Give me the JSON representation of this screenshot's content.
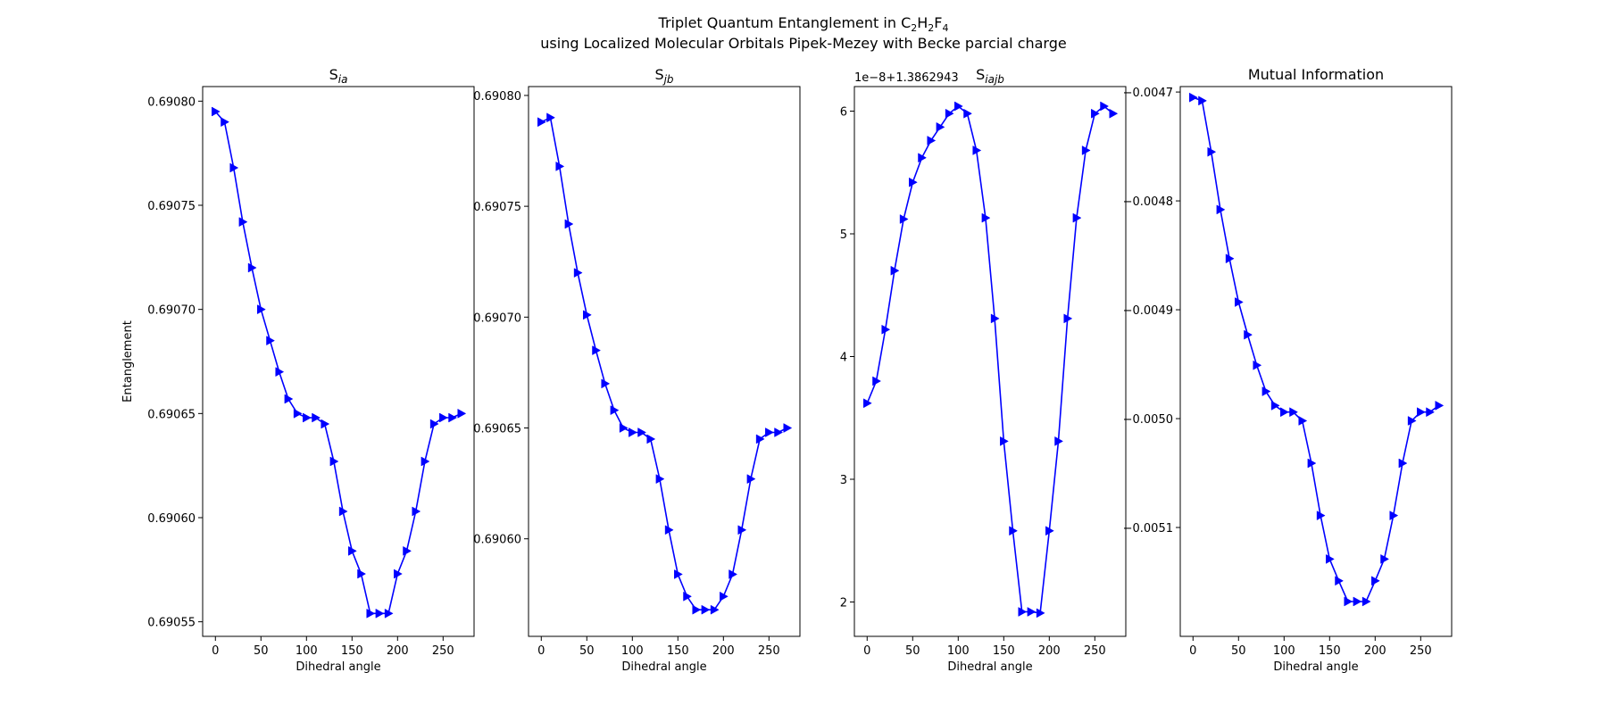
{
  "figure": {
    "title_line1_prefix": "Triplet Quantum Entanglement in C",
    "title_formula_sub1": "2",
    "title_formula_mid": "H",
    "title_formula_sub2": "2",
    "title_formula_end": "F",
    "title_formula_sub3": "4",
    "title_line2": "using Localized Molecular Orbitals Pipek-Mezey with Becke parcial charge"
  },
  "style": {
    "line_color": "#0000ff",
    "marker": "triangle-right"
  },
  "chart_data": [
    {
      "type": "line",
      "title_main": "S",
      "title_sub": "ia",
      "xlabel": "Dihedral angle",
      "ylabel": "Entanglement",
      "offset_text": "",
      "xlim": [
        -14,
        284
      ],
      "ylim": [
        0.690543,
        0.690807
      ],
      "xticks": [
        0,
        50,
        100,
        150,
        200,
        250
      ],
      "yticks": [
        0.69055,
        0.6906,
        0.69065,
        0.6907,
        0.69075,
        0.6908
      ],
      "ytick_labels": [
        "0.69055",
        "0.69060",
        "0.69065",
        "0.69070",
        "0.69075",
        "0.69080"
      ],
      "x": [
        0,
        10,
        20,
        30,
        40,
        50,
        60,
        70,
        80,
        90,
        100,
        110,
        120,
        130,
        140,
        150,
        160,
        170,
        180,
        190,
        200,
        210,
        220,
        230,
        240,
        250,
        260,
        270
      ],
      "values": [
        0.690795,
        0.69079,
        0.690768,
        0.690742,
        0.69072,
        0.6907,
        0.690685,
        0.69067,
        0.690657,
        0.69065,
        0.690648,
        0.690648,
        0.690645,
        0.690627,
        0.690603,
        0.690584,
        0.690573,
        0.690554,
        0.690554,
        0.690554,
        0.690573,
        0.690584,
        0.690603,
        0.690627,
        0.690645,
        0.690648,
        0.690648,
        0.69065
      ]
    },
    {
      "type": "line",
      "title_main": "S",
      "title_sub": "jb",
      "xlabel": "Dihedral angle",
      "ylabel": "",
      "offset_text": "",
      "xlim": [
        -14,
        284
      ],
      "ylim": [
        0.690556,
        0.690804
      ],
      "xticks": [
        0,
        50,
        100,
        150,
        200,
        250
      ],
      "yticks": [
        0.6906,
        0.69065,
        0.6907,
        0.69075,
        0.6908
      ],
      "ytick_labels": [
        "0.69060",
        "0.69065",
        "0.69070",
        "0.69075",
        "0.69080"
      ],
      "x": [
        0,
        10,
        20,
        30,
        40,
        50,
        60,
        70,
        80,
        90,
        100,
        110,
        120,
        130,
        140,
        150,
        160,
        170,
        180,
        190,
        200,
        210,
        220,
        230,
        240,
        250,
        260,
        270
      ],
      "values": [
        0.690788,
        0.69079,
        0.690768,
        0.690742,
        0.69072,
        0.690701,
        0.690685,
        0.69067,
        0.690658,
        0.69065,
        0.690648,
        0.690648,
        0.690645,
        0.690627,
        0.690604,
        0.690584,
        0.690574,
        0.690568,
        0.690568,
        0.690568,
        0.690574,
        0.690584,
        0.690604,
        0.690627,
        0.690645,
        0.690648,
        0.690648,
        0.69065
      ]
    },
    {
      "type": "line",
      "title_main": "S",
      "title_sub": "iajb",
      "xlabel": "Dihedral angle",
      "ylabel": "",
      "offset_text": "1e−8+1.3862943",
      "xlim": [
        -14,
        284
      ],
      "ylim": [
        1.72,
        6.2
      ],
      "xticks": [
        0,
        50,
        100,
        150,
        200,
        250
      ],
      "yticks": [
        2,
        3,
        4,
        5,
        6
      ],
      "ytick_labels": [
        "2",
        "3",
        "4",
        "5",
        "6"
      ],
      "x": [
        0,
        10,
        20,
        30,
        40,
        50,
        60,
        70,
        80,
        90,
        100,
        110,
        120,
        130,
        140,
        150,
        160,
        170,
        180,
        190,
        200,
        210,
        220,
        230,
        240,
        250,
        260,
        270
      ],
      "values": [
        3.62,
        3.8,
        4.22,
        4.7,
        5.12,
        5.42,
        5.62,
        5.76,
        5.87,
        5.98,
        6.04,
        5.98,
        5.68,
        5.13,
        4.31,
        3.31,
        2.58,
        1.92,
        1.92,
        1.91,
        2.58,
        3.31,
        4.31,
        5.13,
        5.68,
        5.98,
        6.04,
        5.98
      ]
    },
    {
      "type": "line",
      "title_main": "Mutual Information",
      "title_sub": "",
      "xlabel": "Dihedral angle",
      "ylabel": "",
      "offset_text": "",
      "xlim": [
        -14,
        284
      ],
      "ylim": [
        -0.0052,
        -0.004695
      ],
      "xticks": [
        0,
        50,
        100,
        150,
        200,
        250
      ],
      "yticks": [
        -0.0047,
        -0.0048,
        -0.0049,
        -0.005,
        -0.0051
      ],
      "ytick_labels": [
        "−0.0047",
        "−0.0048",
        "−0.0049",
        "−0.0050",
        "−0.0051"
      ],
      "x": [
        0,
        10,
        20,
        30,
        40,
        50,
        60,
        70,
        80,
        90,
        100,
        110,
        120,
        130,
        140,
        150,
        160,
        170,
        180,
        190,
        200,
        210,
        220,
        230,
        240,
        250,
        260,
        270
      ],
      "values": [
        -0.004705,
        -0.004708,
        -0.004755,
        -0.004808,
        -0.004853,
        -0.004893,
        -0.004923,
        -0.004951,
        -0.004975,
        -0.004988,
        -0.004994,
        -0.004994,
        -0.005002,
        -0.005041,
        -0.005089,
        -0.005129,
        -0.005149,
        -0.005168,
        -0.005168,
        -0.005168,
        -0.005149,
        -0.005129,
        -0.005089,
        -0.005041,
        -0.005002,
        -0.004994,
        -0.004994,
        -0.004988
      ]
    }
  ]
}
